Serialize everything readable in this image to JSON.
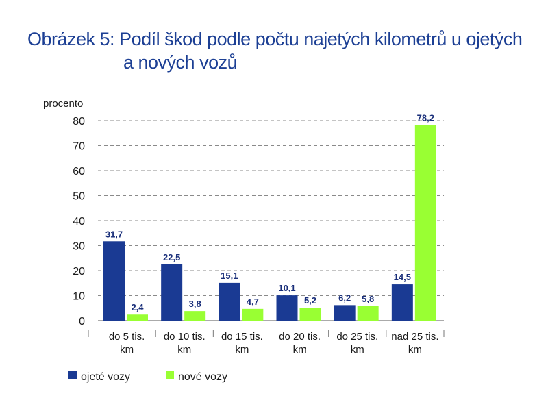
{
  "title_line1": "Obrázek 5: Podíl škod podle počtu najetých kilometrů u ojetých",
  "title_line2": "a nových vozů",
  "colors": {
    "title": "#1c3f94",
    "series_a": "#1a3a93",
    "series_b": "#99ff33",
    "grid": "#8a8a8a",
    "text": "#1a1a1a"
  },
  "chart_data": {
    "type": "bar",
    "ylabel": "procento",
    "ylim": [
      0,
      80
    ],
    "yticks": [
      0,
      10,
      20,
      30,
      40,
      50,
      60,
      70,
      80
    ],
    "grid": "dashed horizontal",
    "legend_position": "bottom-left",
    "categories": [
      [
        "do 5 tis.",
        "km"
      ],
      [
        "do 10 tis.",
        "km"
      ],
      [
        "do 15 tis.",
        "km"
      ],
      [
        "do 20 tis.",
        "km"
      ],
      [
        "do 25 tis.",
        "km"
      ],
      [
        "nad 25 tis.",
        "km"
      ]
    ],
    "series": [
      {
        "name": "ojeté vozy",
        "values": [
          31.7,
          22.5,
          15.1,
          10.1,
          6.2,
          14.5
        ],
        "labels": [
          "31,7",
          "22,5",
          "15,1",
          "10,1",
          "6,2",
          "14,5"
        ]
      },
      {
        "name": "nové vozy",
        "values": [
          2.4,
          3.8,
          4.7,
          5.2,
          5.8,
          78.2
        ],
        "labels": [
          "2,4",
          "3,8",
          "4,7",
          "5,2",
          "5,8",
          "78,2"
        ]
      }
    ]
  }
}
